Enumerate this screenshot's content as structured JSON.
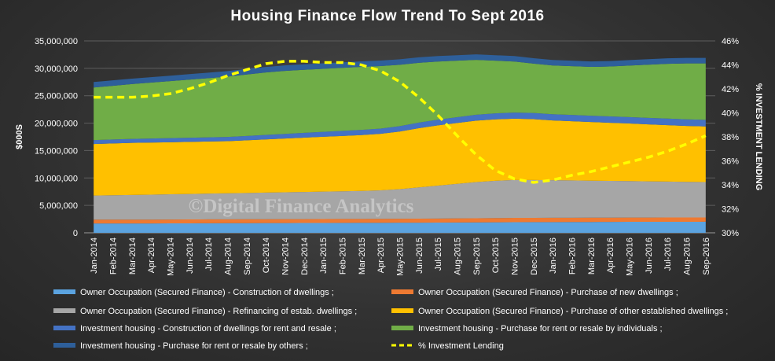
{
  "chart_data": {
    "type": "area",
    "title": "Housing Finance Flow Trend To Sept 2016",
    "ylabel": "$000S",
    "y2label": "% INVESTMENT LENDING",
    "ylim": [
      0,
      35000000
    ],
    "y2lim": [
      30,
      46
    ],
    "yticks": [
      "0",
      "5,000,000",
      "10,000,000",
      "15,000,000",
      "20,000,000",
      "25,000,000",
      "30,000,000",
      "35,000,000"
    ],
    "y2ticks": [
      "30%",
      "32%",
      "34%",
      "36%",
      "38%",
      "40%",
      "42%",
      "44%",
      "46%"
    ],
    "categories": [
      "Jan-2014",
      "Feb-2014",
      "Mar-2014",
      "Apr-2014",
      "May-2014",
      "Jun-2014",
      "Jul-2014",
      "Aug-2014",
      "Sep-2014",
      "Oct-2014",
      "Nov-2014",
      "Dec-2014",
      "Jan-2015",
      "Feb-2015",
      "Mar-2015",
      "Apr-2015",
      "May-2015",
      "Jun-2015",
      "Jul-2015",
      "Aug-2015",
      "Sep-2015",
      "Oct-2015",
      "Nov-2015",
      "Dec-2015",
      "Jan-2016",
      "Feb-2016",
      "Mar-2016",
      "Apr-2016",
      "May-2016",
      "Jun-2016",
      "Jul-2016",
      "Aug-2016",
      "Sep-2016"
    ],
    "stack_series": [
      {
        "name": "Owner Occupation (Secured Finance) - Construction of dwellings ;",
        "color": "#5ba3e0",
        "values": [
          1700000,
          1700000,
          1700000,
          1710000,
          1720000,
          1730000,
          1740000,
          1750000,
          1760000,
          1770000,
          1780000,
          1790000,
          1800000,
          1810000,
          1820000,
          1830000,
          1840000,
          1850000,
          1860000,
          1880000,
          1900000,
          1920000,
          1940000,
          1950000,
          1960000,
          1970000,
          1980000,
          1990000,
          2000000,
          2000000,
          2010000,
          2010000,
          2020000
        ]
      },
      {
        "name": "Owner Occupation (Secured Finance) - Purchase of new dwellings ;",
        "color": "#ee7a32",
        "values": [
          700000,
          700000,
          700000,
          700000,
          700000,
          710000,
          710000,
          710000,
          710000,
          710000,
          710000,
          710000,
          710000,
          710000,
          710000,
          720000,
          720000,
          730000,
          740000,
          750000,
          760000,
          770000,
          780000,
          780000,
          780000,
          780000,
          780000,
          780000,
          780000,
          780000,
          780000,
          780000,
          780000
        ]
      },
      {
        "name": "Owner Occupation (Secured Finance) - Refinancing of estab. dwellings ;",
        "color": "#a6a6a6",
        "values": [
          4400000,
          4450000,
          4500000,
          4550000,
          4600000,
          4650000,
          4700000,
          4750000,
          4800000,
          4850000,
          4900000,
          4950000,
          5000000,
          5050000,
          5100000,
          5200000,
          5400000,
          5700000,
          6000000,
          6300000,
          6600000,
          6800000,
          6900000,
          6900000,
          6850000,
          6800000,
          6750000,
          6700000,
          6650000,
          6600000,
          6550000,
          6500000,
          6450000
        ]
      },
      {
        "name": "Owner Occupation (Secured Finance) - Purchase of other established dwellings ;",
        "color": "#ffc000",
        "values": [
          9400000,
          9450000,
          9500000,
          9500000,
          9500000,
          9500000,
          9500000,
          9500000,
          9600000,
          9700000,
          9800000,
          9900000,
          10000000,
          10100000,
          10200000,
          10300000,
          10500000,
          10800000,
          11000000,
          11100000,
          11200000,
          11200000,
          11200000,
          11100000,
          10900000,
          10800000,
          10700000,
          10600000,
          10500000,
          10400000,
          10300000,
          10200000,
          10150000
        ]
      },
      {
        "name": "Investment housing - Construction of dwellings for rent and resale ;",
        "color": "#4472c4",
        "values": [
          700000,
          710000,
          720000,
          730000,
          740000,
          750000,
          760000,
          780000,
          800000,
          820000,
          850000,
          880000,
          900000,
          920000,
          940000,
          960000,
          990000,
          1020000,
          1040000,
          1060000,
          1080000,
          1100000,
          1110000,
          1120000,
          1130000,
          1140000,
          1150000,
          1160000,
          1170000,
          1180000,
          1190000,
          1200000,
          1200000
        ]
      },
      {
        "name": "Investment housing - Purchase for rent or resale by individuals ;",
        "color": "#70ad47",
        "values": [
          9600000,
          9800000,
          10000000,
          10200000,
          10400000,
          10600000,
          10800000,
          11000000,
          11200000,
          11400000,
          11500000,
          11500000,
          11500000,
          11500000,
          11500000,
          11400000,
          11200000,
          10900000,
          10600000,
          10300000,
          10000000,
          9600000,
          9300000,
          9000000,
          8900000,
          8900000,
          8900000,
          9100000,
          9400000,
          9700000,
          10000000,
          10200000,
          10300000
        ]
      },
      {
        "name": "Investment housing - Purchase for rent or resale by others ;",
        "color": "#2e5f9a",
        "values": [
          1000000,
          1000000,
          1000000,
          1000000,
          1000000,
          1000000,
          1000000,
          1000000,
          1000000,
          1000000,
          1000000,
          1000000,
          1000000,
          1000000,
          1000000,
          1000000,
          1000000,
          1000000,
          1000000,
          1000000,
          1000000,
          1000000,
          1000000,
          1000000,
          1000000,
          1000000,
          1000000,
          1000000,
          1000000,
          1000000,
          1000000,
          1000000,
          1000000
        ]
      }
    ],
    "line_series": {
      "name": "% Investment Lending",
      "color": "#ffff00",
      "values": [
        41.3,
        41.3,
        41.3,
        41.4,
        41.6,
        42.0,
        42.5,
        43.1,
        43.6,
        44.1,
        44.3,
        44.3,
        44.2,
        44.2,
        44.0,
        43.5,
        42.6,
        41.3,
        39.8,
        38.1,
        36.5,
        35.2,
        34.5,
        34.2,
        34.4,
        34.8,
        35.1,
        35.5,
        35.9,
        36.3,
        36.8,
        37.4,
        38.1
      ]
    },
    "legend": "bottom",
    "annotation": "©Digital Finance Analytics"
  }
}
